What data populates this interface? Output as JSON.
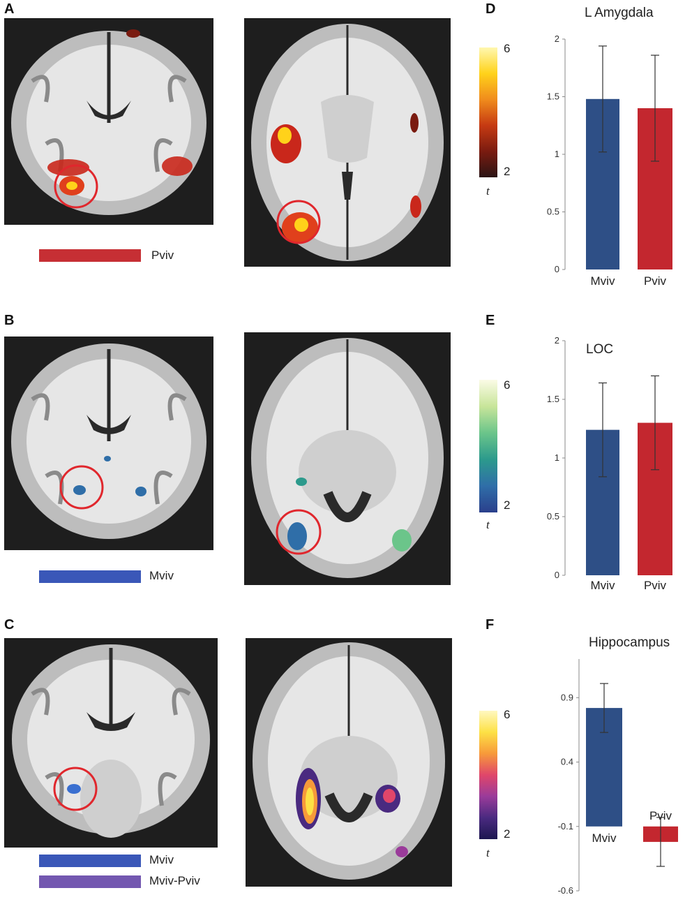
{
  "panels": {
    "A": "A",
    "B": "B",
    "C": "C",
    "D": "D",
    "E": "E",
    "F": "F"
  },
  "legends": {
    "A": [
      {
        "label": "Pviv",
        "color": "#c62f34"
      }
    ],
    "B": [
      {
        "label": "Mviv",
        "color": "#3a57b8"
      }
    ],
    "C": [
      {
        "label": "Mviv",
        "color": "#3a57b8"
      },
      {
        "label": "Mviv-Pviv",
        "color": "#7357b0"
      }
    ]
  },
  "colorbars": {
    "A": {
      "max": "6",
      "min": "2",
      "label": "t",
      "colors": [
        "#fff8b0",
        "#ffd21a",
        "#f08c1c",
        "#c63a12",
        "#7a1b10",
        "#2b1414"
      ]
    },
    "B": {
      "max": "6",
      "min": "2",
      "label": "t",
      "colors": [
        "#fbfbe6",
        "#c8e59a",
        "#6bc58a",
        "#2c9a8c",
        "#2f6ea8",
        "#2a3f8c"
      ]
    },
    "C": {
      "max": "6",
      "min": "2",
      "label": "t",
      "colors": [
        "#fff8c0",
        "#fde145",
        "#f79a3a",
        "#e0466a",
        "#9a3b9a",
        "#4a2a80",
        "#1c1650"
      ]
    }
  },
  "chart_data": [
    {
      "type": "bar",
      "title": "L Amygdala",
      "categories": [
        "Mviv",
        "Pviv"
      ],
      "values": [
        1.48,
        1.4
      ],
      "errors": [
        0.46,
        0.46
      ],
      "colors": [
        "#2e4f86",
        "#c3272f"
      ],
      "ylim": [
        0,
        2
      ],
      "yticks": [
        "0",
        "0.5",
        "1",
        "1.5",
        "2"
      ],
      "ytick_values": [
        0,
        0.5,
        1,
        1.5,
        2
      ]
    },
    {
      "type": "bar",
      "title": "LOC",
      "categories": [
        "Mviv",
        "Pviv"
      ],
      "values": [
        1.24,
        1.3
      ],
      "errors": [
        0.4,
        0.4
      ],
      "colors": [
        "#2e4f86",
        "#c3272f"
      ],
      "ylim": [
        0,
        2
      ],
      "yticks": [
        "0",
        "0.5",
        "1",
        "1.5",
        "2"
      ],
      "ytick_values": [
        0,
        0.5,
        1,
        1.5,
        2
      ]
    },
    {
      "type": "bar",
      "title": "Hippocampus",
      "categories": [
        "Mviv",
        "Pviv"
      ],
      "values": [
        0.82,
        -0.22
      ],
      "errors": [
        0.19,
        0.19
      ],
      "colors": [
        "#2e4f86",
        "#c3272f"
      ],
      "ylim": [
        -0.6,
        1.2
      ],
      "yticks": [
        "0.9",
        "0.4",
        "-0.1",
        "-0.6"
      ],
      "ytick_values": [
        0.9,
        0.4,
        -0.1,
        -0.6
      ]
    }
  ]
}
